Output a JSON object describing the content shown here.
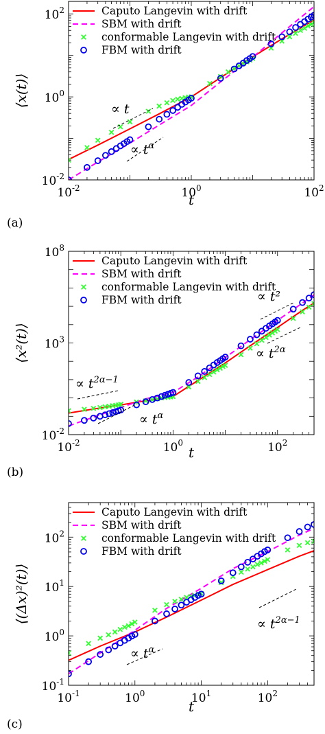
{
  "colors": {
    "caputo": "#ff0000",
    "sbm": "#ff00ff",
    "conformable": "#33ff33",
    "fbm": "#0000ee",
    "guide": "#000000"
  },
  "chart_data": [
    {
      "type": "line",
      "panel_label": "(a)",
      "xlabel": "t",
      "ylabel": "⟨x(t)⟩",
      "xscale": "log",
      "yscale": "log",
      "xlim": [
        0.01,
        100
      ],
      "ylim": [
        0.01,
        200
      ],
      "xtick_values": [
        0.01,
        1,
        100
      ],
      "xtick_labels": [
        [
          "10",
          "-2"
        ],
        [
          "10",
          "0"
        ],
        [
          "10",
          "2"
        ]
      ],
      "ytick_values": [
        0.01,
        1,
        100
      ],
      "ytick_labels": [
        [
          "10",
          "-2"
        ],
        [
          "10",
          "0"
        ],
        [
          "10",
          "2"
        ]
      ],
      "legend": [
        "Caputo Langevin with drift",
        "SBM with drift",
        "conformable Langevin with drift",
        "FBM with drift"
      ],
      "legend_position": "top-left",
      "series": [
        {
          "name": "Caputo Langevin with drift",
          "style": "solid",
          "x": [
            0.01,
            0.03,
            0.1,
            0.3,
            1,
            3,
            10,
            30,
            100
          ],
          "y": [
            0.031,
            0.069,
            0.17,
            0.39,
            1.0,
            2.9,
            9.2,
            25,
            71
          ]
        },
        {
          "name": "SBM with drift",
          "style": "dashed",
          "x": [
            0.01,
            0.03,
            0.1,
            0.3,
            1,
            3,
            10,
            30,
            100
          ],
          "y": [
            0.01,
            0.027,
            0.077,
            0.21,
            0.62,
            2.3,
            9.0,
            35,
            150
          ]
        },
        {
          "name": "conformable Langevin with drift",
          "style": "cross",
          "x": [
            0.01,
            0.02,
            0.03,
            0.05,
            0.07,
            0.1,
            0.2,
            0.3,
            0.4,
            0.5,
            0.6,
            0.7,
            0.8,
            0.9,
            1,
            2,
            3,
            4,
            5,
            6,
            7,
            8,
            9,
            10,
            20,
            30,
            40,
            50,
            60,
            70,
            80,
            90,
            100
          ],
          "y": [
            0.03,
            0.06,
            0.09,
            0.14,
            0.19,
            0.25,
            0.45,
            0.6,
            0.72,
            0.82,
            0.88,
            0.92,
            0.96,
            0.99,
            1.0,
            2.1,
            3.1,
            4.0,
            4.8,
            5.6,
            6.3,
            7.0,
            7.7,
            8.4,
            15,
            22,
            28,
            34,
            40,
            45,
            51,
            56,
            62
          ]
        },
        {
          "name": "FBM with drift",
          "style": "circle",
          "x": [
            0.01,
            0.02,
            0.03,
            0.04,
            0.05,
            0.06,
            0.07,
            0.08,
            0.09,
            0.1,
            0.2,
            0.3,
            0.4,
            0.5,
            0.6,
            0.7,
            0.8,
            0.9,
            1,
            3,
            5,
            6,
            7,
            8,
            9,
            10,
            20,
            30,
            40,
            50,
            60,
            70,
            80,
            90,
            100
          ],
          "y": [
            0.01,
            0.02,
            0.029,
            0.039,
            0.048,
            0.057,
            0.066,
            0.075,
            0.084,
            0.093,
            0.19,
            0.29,
            0.38,
            0.47,
            0.56,
            0.66,
            0.75,
            0.84,
            0.93,
            2.8,
            4.7,
            5.6,
            6.5,
            7.5,
            8.4,
            9.4,
            19,
            28,
            37,
            47,
            56,
            65,
            75,
            84,
            93
          ]
        }
      ],
      "annotations": [
        {
          "text": "∝ t",
          "x": 0.035,
          "y": 0.65
        },
        {
          "text": "∝ t^α",
          "x": 0.1,
          "y": 0.017
        }
      ]
    },
    {
      "type": "line",
      "panel_label": "(b)",
      "xlabel": "t",
      "ylabel": "⟨x²(t)⟩",
      "xscale": "log",
      "yscale": "log",
      "xlim": [
        0.01,
        500
      ],
      "ylim": [
        0.01,
        100000000
      ],
      "xtick_values": [
        0.01,
        1,
        100
      ],
      "xtick_labels": [
        [
          "10",
          "-2"
        ],
        [
          "10",
          "0"
        ],
        [
          "10",
          "2"
        ]
      ],
      "ytick_values": [
        0.01,
        1000,
        100000000
      ],
      "ytick_labels": [
        [
          "10",
          "-2"
        ],
        [
          "10",
          "3"
        ],
        [
          "10",
          "8"
        ]
      ],
      "legend": [
        "Caputo Langevin with drift",
        "SBM with drift",
        "conformable Langevin with drift",
        "FBM with drift"
      ],
      "legend_position": "top-left",
      "series": [
        {
          "name": "Caputo Langevin with drift",
          "style": "solid",
          "x": [
            0.01,
            0.03,
            0.1,
            0.3,
            1,
            3,
            10,
            30,
            100,
            300,
            500
          ],
          "y": [
            0.15,
            0.25,
            0.42,
            0.7,
            1.2,
            9,
            81,
            700,
            7000,
            60000,
            150000
          ]
        },
        {
          "name": "SBM with drift",
          "style": "dashed",
          "x": [
            0.01,
            0.03,
            0.1,
            0.3,
            1,
            3,
            10,
            30,
            100,
            300,
            500
          ],
          "y": [
            0.03,
            0.09,
            0.3,
            0.9,
            2,
            14,
            160,
            1500,
            17000,
            150000,
            420000
          ]
        },
        {
          "name": "conformable Langevin with drift",
          "style": "cross",
          "x": [
            0.01,
            0.02,
            0.03,
            0.04,
            0.05,
            0.06,
            0.07,
            0.08,
            0.09,
            0.1,
            0.2,
            0.3,
            0.4,
            0.5,
            0.6,
            0.7,
            0.8,
            0.9,
            1,
            2,
            3,
            4,
            5,
            6,
            7,
            8,
            9,
            10,
            20,
            30,
            40,
            50,
            60,
            70,
            80,
            90,
            100,
            200,
            300,
            400,
            500
          ],
          "y": [
            0.2,
            0.24,
            0.27,
            0.3,
            0.33,
            0.35,
            0.38,
            0.4,
            0.42,
            0.45,
            0.6,
            0.7,
            0.8,
            0.9,
            1.0,
            1.05,
            1.1,
            1.15,
            1.2,
            4,
            8,
            13,
            19,
            26,
            34,
            42,
            52,
            60,
            230,
            520,
            900,
            1400,
            2000,
            2700,
            3500,
            4400,
            5400,
            22000,
            50000,
            90000,
            140000
          ]
        },
        {
          "name": "FBM with drift",
          "style": "circle",
          "x": [
            0.01,
            0.02,
            0.03,
            0.04,
            0.05,
            0.06,
            0.07,
            0.08,
            0.09,
            0.1,
            0.2,
            0.3,
            0.4,
            0.5,
            0.6,
            0.7,
            0.8,
            0.9,
            1,
            2,
            3,
            4,
            5,
            6,
            7,
            8,
            9,
            10,
            20,
            30,
            40,
            50,
            60,
            70,
            80,
            90,
            100,
            200,
            300,
            400,
            500
          ],
          "y": [
            0.04,
            0.06,
            0.08,
            0.1,
            0.12,
            0.14,
            0.16,
            0.18,
            0.2,
            0.22,
            0.42,
            0.62,
            0.82,
            1.0,
            1.2,
            1.4,
            1.6,
            1.8,
            2.0,
            7,
            16,
            28,
            44,
            63,
            86,
            110,
            140,
            170,
            700,
            1600,
            2800,
            4400,
            6300,
            8600,
            11000,
            14000,
            17000,
            70000,
            160000,
            280000,
            430000
          ]
        }
      ],
      "annotations": [
        {
          "text": "∝ t^{2α−1}",
          "x": 0.012,
          "y": 0.6
        },
        {
          "text": "∝ t^α",
          "x": 0.2,
          "y": 0.025
        },
        {
          "text": "∝ t²",
          "x": 60,
          "y": 3000000
        },
        {
          "text": "∝ t^{2α}",
          "x": 60,
          "y": 600
        }
      ]
    },
    {
      "type": "line",
      "panel_label": "(c)",
      "xlabel": "t",
      "ylabel": "⟨(Δx)²(t)⟩",
      "xscale": "log",
      "yscale": "log",
      "xlim": [
        0.1,
        500
      ],
      "ylim": [
        0.1,
        500
      ],
      "xtick_values": [
        0.1,
        1,
        10,
        100
      ],
      "xtick_labels": [
        [
          "10",
          "-1"
        ],
        [
          "10",
          "0"
        ],
        [
          "10",
          "1"
        ],
        [
          "10",
          "2"
        ]
      ],
      "ytick_values": [
        0.1,
        1,
        10,
        100
      ],
      "ytick_labels": [
        [
          "10",
          "-1"
        ],
        [
          "10",
          "0"
        ],
        [
          "10",
          "1"
        ],
        [
          "10",
          "2"
        ]
      ],
      "legend": [
        "Caputo Langevin with drift",
        "SBM with drift",
        "conformable Langevin with drift",
        "FBM with drift"
      ],
      "legend_position": "top-left",
      "series": [
        {
          "name": "Caputo Langevin with drift",
          "style": "solid",
          "x": [
            0.1,
            0.3,
            1,
            3,
            10,
            30,
            100,
            300,
            500
          ],
          "y": [
            0.32,
            0.62,
            1.2,
            2.4,
            5.3,
            11,
            22,
            41,
            53
          ]
        },
        {
          "name": "SBM with drift",
          "style": "dashed",
          "x": [
            0.1,
            0.3,
            1,
            3,
            10,
            30,
            100,
            300,
            500
          ],
          "y": [
            0.17,
            0.45,
            1.3,
            3.6,
            9.2,
            23,
            51,
            110,
            150
          ]
        },
        {
          "name": "conformable Langevin with drift",
          "style": "cross",
          "x": [
            0.1,
            0.2,
            0.3,
            0.4,
            0.5,
            0.6,
            0.7,
            0.8,
            0.9,
            1,
            2,
            3,
            4,
            5,
            6,
            7,
            8,
            9,
            10,
            20,
            30,
            40,
            50,
            60,
            70,
            80,
            90,
            100,
            200,
            300,
            400,
            500
          ],
          "y": [
            0.45,
            0.7,
            0.9,
            1.05,
            1.2,
            1.35,
            1.5,
            1.6,
            1.75,
            1.9,
            3.3,
            4.3,
            5.0,
            5.5,
            6.0,
            6.3,
            6.6,
            6.9,
            7.2,
            12,
            16,
            19.5,
            22.5,
            25,
            28,
            30,
            32.5,
            35,
            55,
            68,
            77,
            82
          ]
        },
        {
          "name": "FBM with drift",
          "style": "circle",
          "x": [
            0.1,
            0.2,
            0.3,
            0.4,
            0.5,
            0.6,
            0.7,
            0.8,
            0.9,
            1,
            2,
            3,
            4,
            5,
            6,
            7,
            8,
            9,
            10,
            20,
            30,
            40,
            50,
            60,
            70,
            80,
            90,
            100,
            200,
            300,
            400,
            500
          ],
          "y": [
            0.17,
            0.3,
            0.42,
            0.52,
            0.62,
            0.72,
            0.81,
            0.9,
            0.99,
            1.07,
            2.0,
            2.8,
            3.5,
            4.2,
            4.8,
            5.4,
            6.0,
            6.6,
            7.0,
            13,
            19,
            25,
            31,
            36,
            41,
            46,
            51,
            55,
            97,
            130,
            160,
            180
          ]
        }
      ],
      "annotations": [
        {
          "text": "∝ t^α",
          "x": 1.3,
          "y": 0.24
        },
        {
          "text": "∝ t^{2α−1}",
          "x": 50,
          "y": 8
        }
      ]
    }
  ]
}
